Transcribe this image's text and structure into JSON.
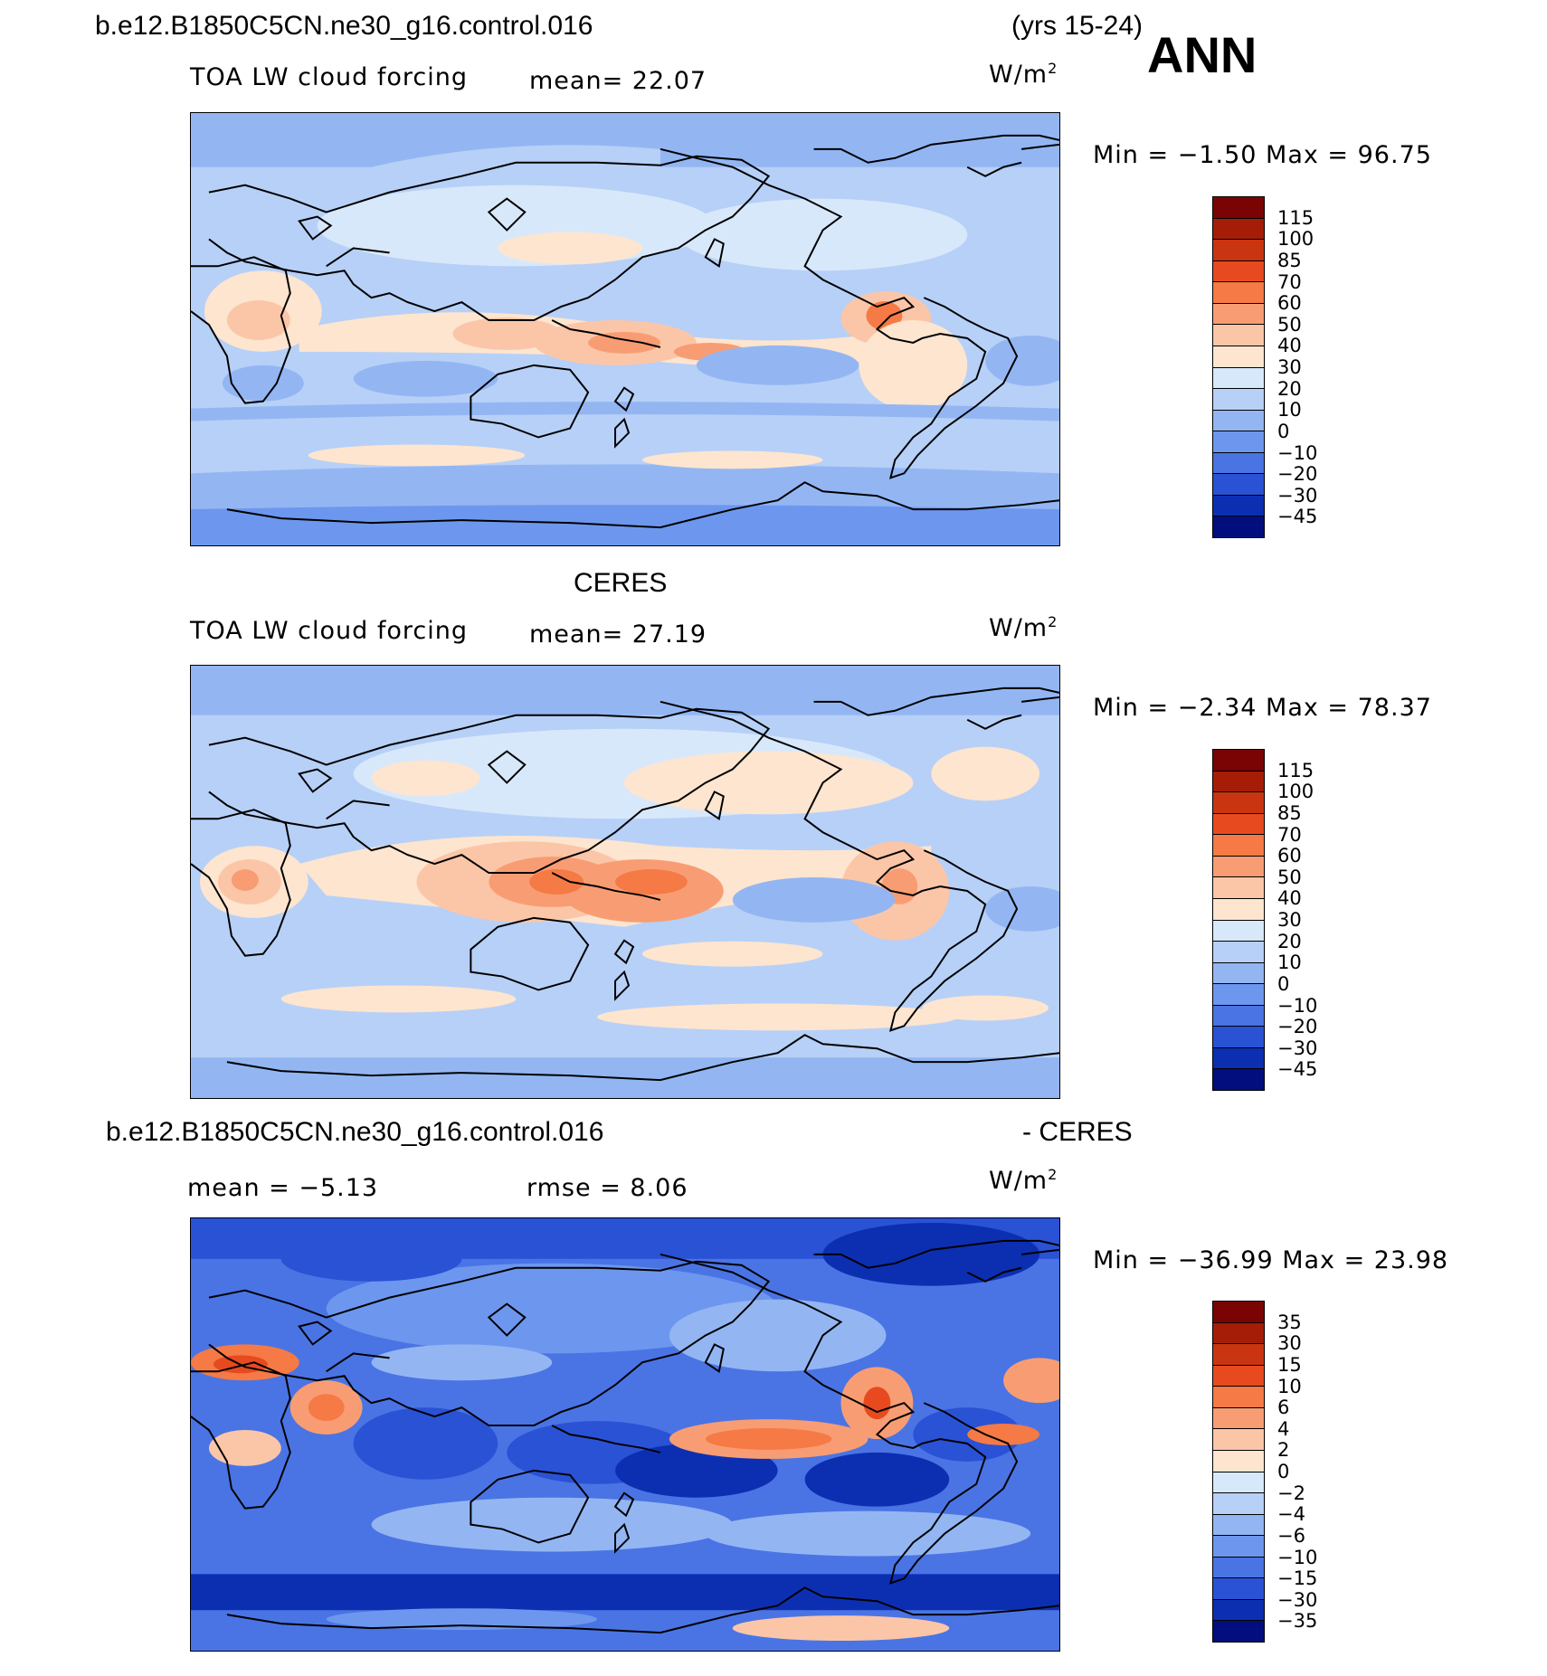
{
  "header": {
    "case_name": "b.e12.B1850C5CN.ne30_g16.control.016",
    "years": "(yrs 15-24)",
    "season": "ANN"
  },
  "panels": [
    {
      "title": "",
      "left": "TOA LW cloud forcing",
      "mean": "mean=  22.07",
      "units_base": "W/m",
      "units_sup": "2",
      "stats": "Min =  −1.50 Max =  96.75",
      "colors": [
        "#7a0403",
        "#a51d07",
        "#c93510",
        "#e84a1f",
        "#f57a45",
        "#f89d73",
        "#fbc6a8",
        "#fde5cf",
        "#d8e8fb",
        "#b7d0f7",
        "#93b6f3",
        "#6d97ee",
        "#4a74e4",
        "#2a52d5",
        "#0c2fb2",
        "#020e7e"
      ],
      "levels": [
        "115",
        "100",
        "85",
        "70",
        "60",
        "50",
        "40",
        "30",
        "20",
        "10",
        "0",
        "−10",
        "−20",
        "−30",
        "−45"
      ]
    },
    {
      "title": "CERES",
      "left": "TOA LW cloud forcing",
      "mean": "mean=  27.19",
      "units_base": "W/m",
      "units_sup": "2",
      "stats": "Min =  −2.34 Max =  78.37",
      "colors": [
        "#7a0403",
        "#a51d07",
        "#c93510",
        "#e84a1f",
        "#f57a45",
        "#f89d73",
        "#fbc6a8",
        "#fde5cf",
        "#d8e8fb",
        "#b7d0f7",
        "#93b6f3",
        "#6d97ee",
        "#4a74e4",
        "#2a52d5",
        "#0c2fb2",
        "#020e7e"
      ],
      "levels": [
        "115",
        "100",
        "85",
        "70",
        "60",
        "50",
        "40",
        "30",
        "20",
        "10",
        "0",
        "−10",
        "−20",
        "−30",
        "−45"
      ]
    },
    {
      "title_left": "b.e12.B1850C5CN.ne30_g16.control.016",
      "title_right": "- CERES",
      "left": "mean =  −5.13",
      "mid": "rmse =   8.06",
      "units_base": "W/m",
      "units_sup": "2",
      "stats": "Min = −36.99 Max =  23.98",
      "colors": [
        "#7a0403",
        "#a51d07",
        "#c93510",
        "#e84a1f",
        "#f57a45",
        "#f89d73",
        "#fbc6a8",
        "#fde5cf",
        "#d8e8fb",
        "#b7d0f7",
        "#93b6f3",
        "#6d97ee",
        "#4a74e4",
        "#2a52d5",
        "#0c2fb2",
        "#020e7e"
      ],
      "levels": [
        "35",
        "30",
        "15",
        "10",
        "6",
        "4",
        "2",
        "0",
        "−2",
        "−4",
        "−6",
        "−10",
        "−15",
        "−30",
        "−35"
      ]
    }
  ]
}
